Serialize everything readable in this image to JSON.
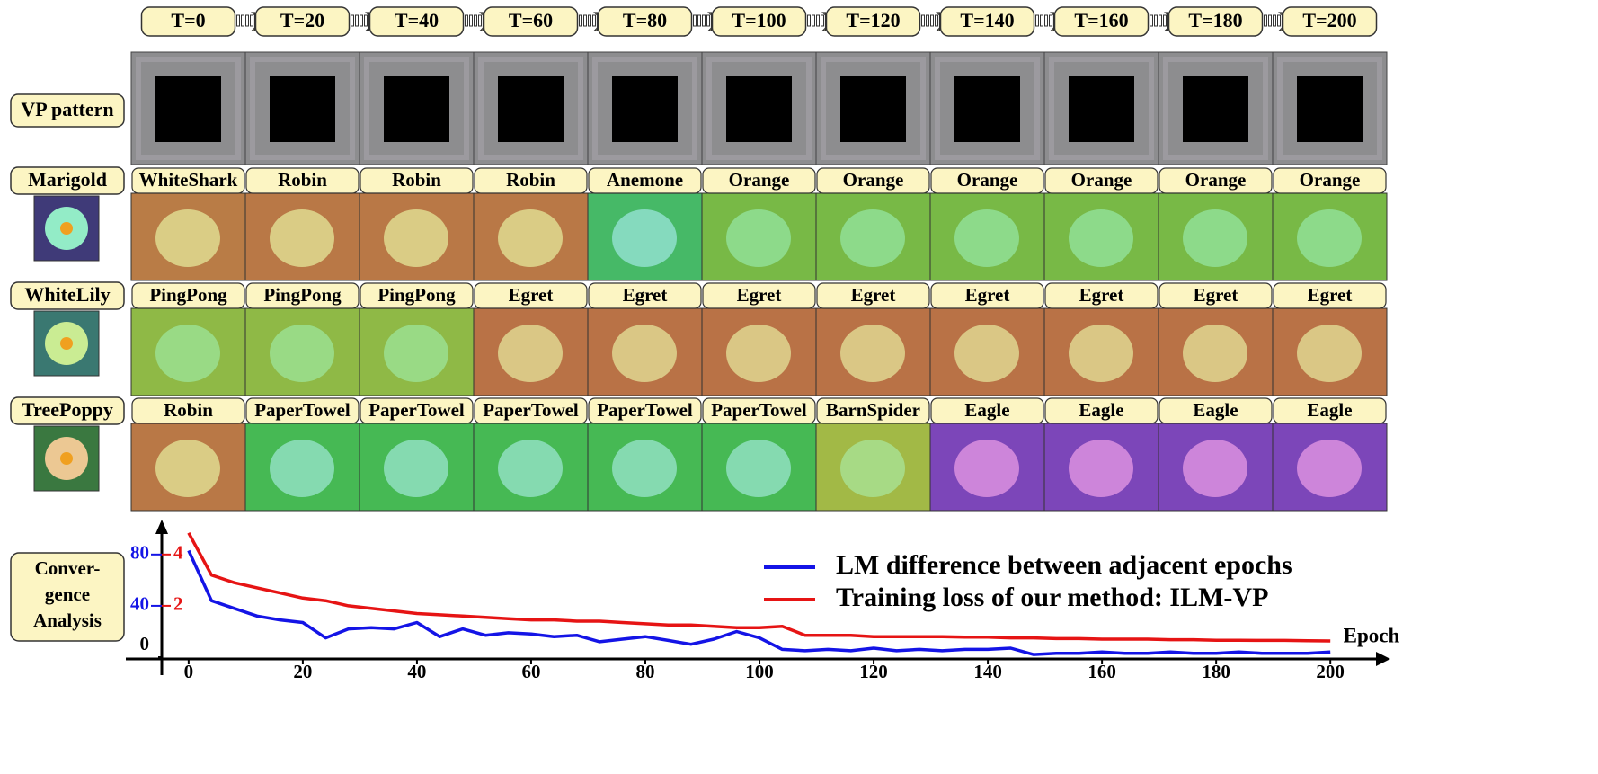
{
  "epochs": [
    "T=0",
    "T=20",
    "T=40",
    "T=60",
    "T=80",
    "T=100",
    "T=120",
    "T=140",
    "T=160",
    "T=180",
    "T=200"
  ],
  "vp_row_label": "VP pattern",
  "classes": [
    {
      "label": "Marigold",
      "predictions": [
        "WhiteShark",
        "Robin",
        "Robin",
        "Robin",
        "Anemone",
        "Orange",
        "Orange",
        "Orange",
        "Orange",
        "Orange",
        "Orange"
      ]
    },
    {
      "label": "WhiteLily",
      "predictions": [
        "PingPong",
        "PingPong",
        "PingPong",
        "Egret",
        "Egret",
        "Egret",
        "Egret",
        "Egret",
        "Egret",
        "Egret",
        "Egret"
      ]
    },
    {
      "label": "TreePoppy",
      "predictions": [
        "Robin",
        "PaperTowel",
        "PaperTowel",
        "PaperTowel",
        "PaperTowel",
        "PaperTowel",
        "BarnSpider",
        "Eagle",
        "Eagle",
        "Eagle",
        "Eagle"
      ]
    }
  ],
  "analysis_label": [
    "Conver-",
    "gence",
    "Analysis"
  ],
  "chart_data": {
    "type": "line",
    "xlabel": "Epoch",
    "x": [
      0,
      4,
      8,
      12,
      16,
      20,
      24,
      28,
      32,
      36,
      40,
      44,
      48,
      52,
      56,
      60,
      64,
      68,
      72,
      76,
      80,
      84,
      88,
      92,
      96,
      100,
      104,
      108,
      112,
      116,
      120,
      124,
      128,
      132,
      136,
      140,
      144,
      148,
      152,
      156,
      160,
      164,
      168,
      172,
      176,
      180,
      184,
      188,
      192,
      196,
      200
    ],
    "series": [
      {
        "name": "LM difference between adjacent epochs",
        "color": "#1414e6",
        "values": [
          83,
          44,
          38,
          32,
          29,
          27,
          15,
          22,
          23,
          22,
          27,
          16,
          22,
          17,
          19,
          18,
          16,
          17,
          12,
          14,
          16,
          13,
          10,
          14,
          20,
          15,
          6,
          5,
          6,
          5,
          7,
          5,
          6,
          5,
          6,
          6,
          7,
          2,
          3,
          3,
          4,
          3,
          3,
          4,
          3,
          3,
          4,
          3,
          3,
          3,
          4
        ]
      },
      {
        "name": "Training loss of our method: ILM-VP",
        "color": "#e61414",
        "axis": "y2",
        "values": [
          4.84,
          3.2,
          2.9,
          2.7,
          2.5,
          2.3,
          2.2,
          2.0,
          1.9,
          1.8,
          1.7,
          1.65,
          1.6,
          1.55,
          1.5,
          1.45,
          1.45,
          1.4,
          1.4,
          1.35,
          1.3,
          1.25,
          1.25,
          1.2,
          1.15,
          1.15,
          1.2,
          0.85,
          0.85,
          0.85,
          0.8,
          0.8,
          0.8,
          0.8,
          0.78,
          0.78,
          0.75,
          0.75,
          0.72,
          0.72,
          0.7,
          0.7,
          0.7,
          0.68,
          0.68,
          0.66,
          0.66,
          0.65,
          0.65,
          0.64,
          0.63
        ]
      }
    ],
    "xlim": [
      -11,
      208
    ],
    "xticks": [
      0,
      20,
      40,
      60,
      80,
      100,
      120,
      140,
      160,
      180,
      200
    ],
    "ylim": [
      0,
      103
    ],
    "yticks": [
      0,
      40,
      80
    ],
    "y2lim": [
      0,
      5.15
    ],
    "y2ticks": [
      2,
      4
    ],
    "grid": false
  }
}
